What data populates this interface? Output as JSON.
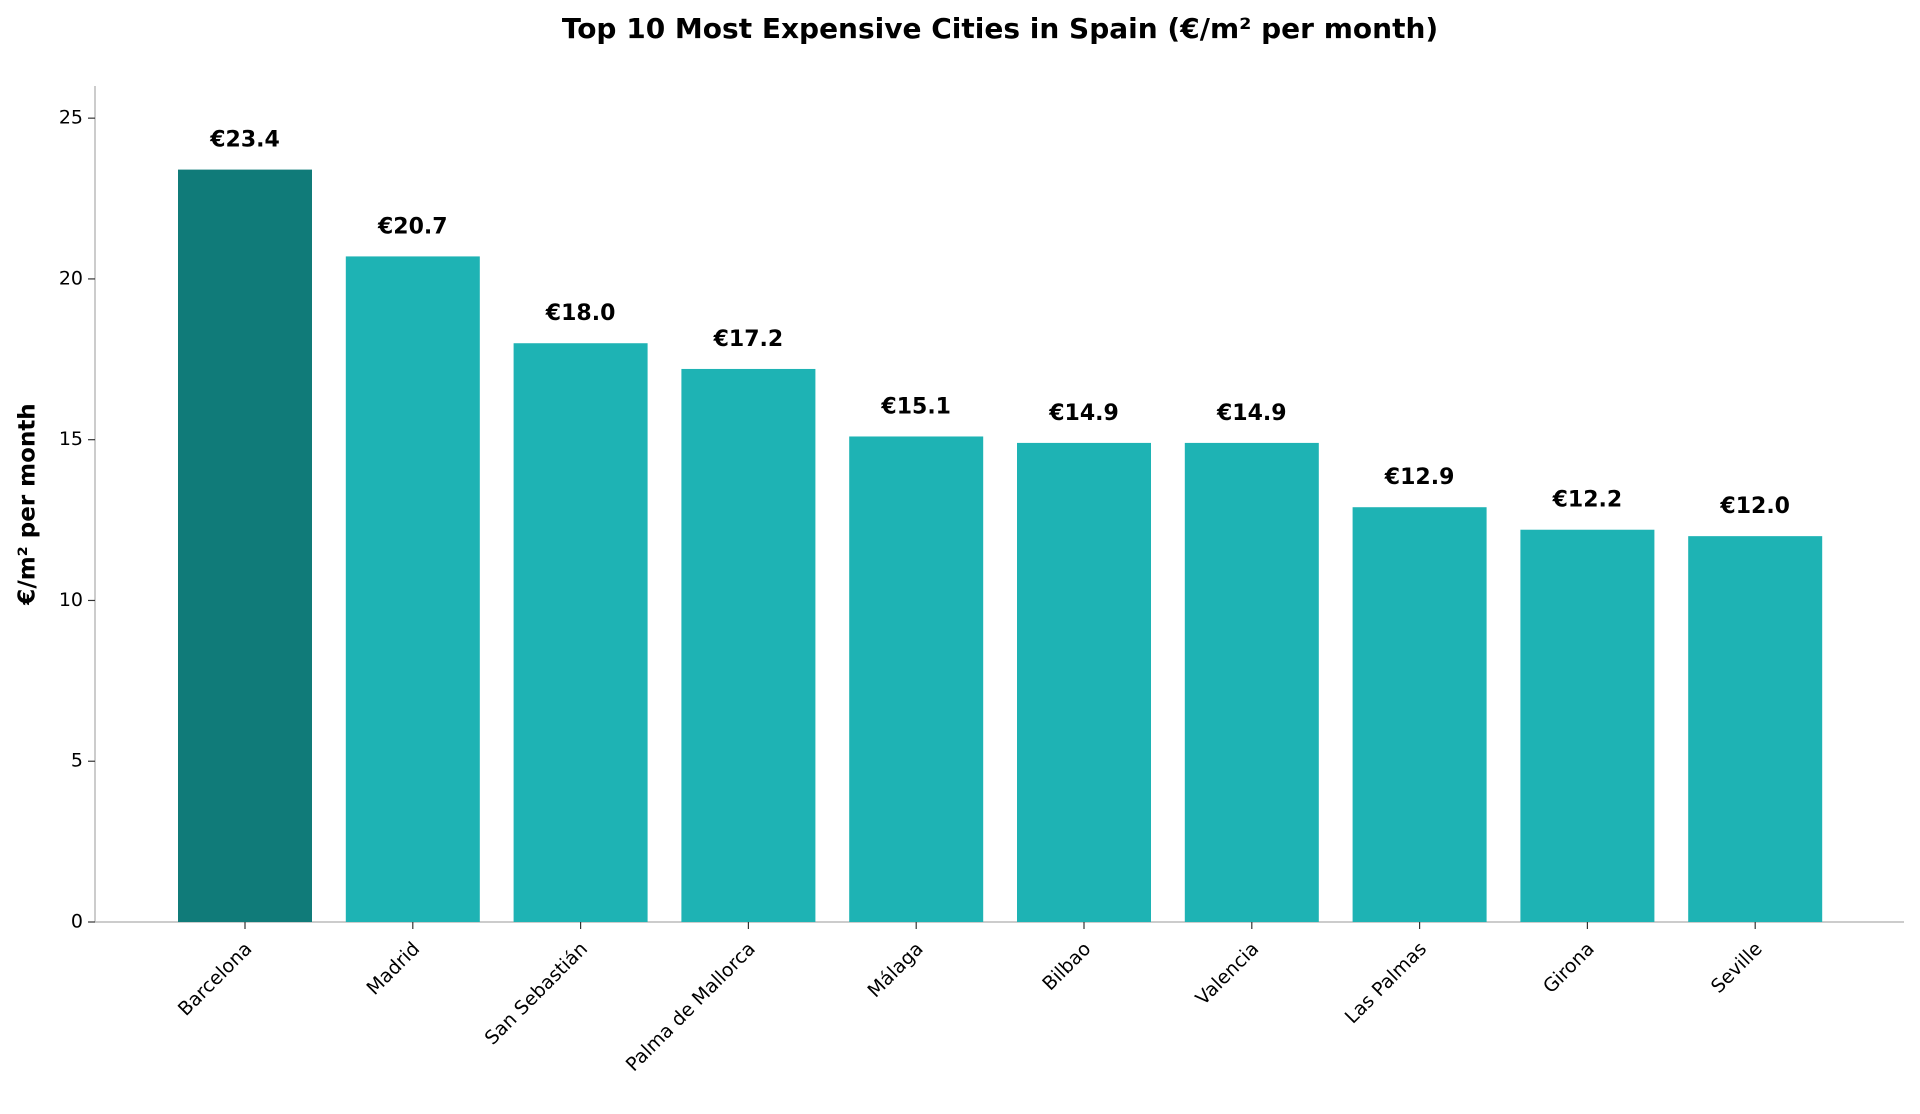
{
  "chart_data": {
    "type": "bar",
    "title": "Top 10 Most Expensive Cities in Spain (€/m² per month)",
    "y_label": "€/m² per month",
    "categories": [
      "Barcelona",
      "Madrid",
      "San Sebastián",
      "Palma de Mallorca",
      "Málaga",
      "Bilbao",
      "Valencia",
      "Las Palmas",
      "Girona",
      "Seville"
    ],
    "values": [
      23.4,
      20.7,
      18.0,
      17.2,
      15.1,
      14.9,
      14.9,
      12.9,
      12.2,
      12.0
    ],
    "value_labels": [
      "€23.4",
      "€20.7",
      "€18.0",
      "€17.2",
      "€15.1",
      "€14.9",
      "€14.9",
      "€12.9",
      "€12.2",
      "€12.0"
    ],
    "colors": [
      "#107b79",
      "#1eb3b4",
      "#1eb3b4",
      "#1eb3b4",
      "#1eb3b4",
      "#1eb3b4",
      "#1eb3b4",
      "#1eb3b4",
      "#1eb3b4",
      "#1eb3b4"
    ],
    "ylim": [
      0,
      26
    ],
    "yticks": [
      0,
      5,
      10,
      15,
      20,
      25
    ],
    "grid": false
  }
}
